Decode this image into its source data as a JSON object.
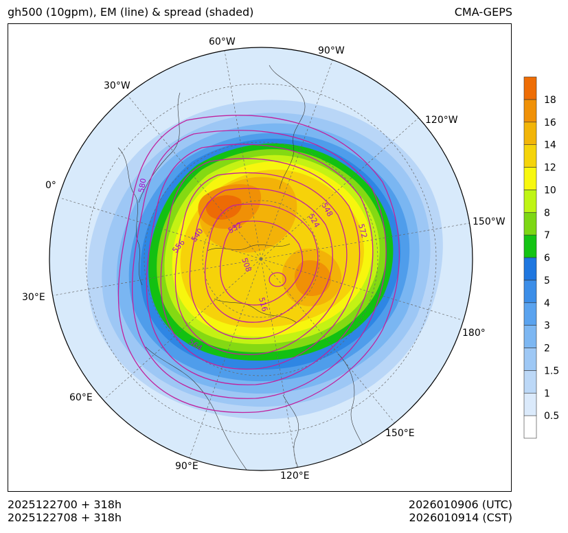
{
  "header": {
    "title": "gh500 (10gpm), EM (line) & spread (shaded)",
    "model": "CMA-GEPS"
  },
  "footer": {
    "init_utc": "2025122700 + 318h",
    "init_cst": "2025122708 + 318h",
    "valid_utc": "2026010906 (UTC)",
    "valid_cst": "2026010914 (CST)"
  },
  "map": {
    "projection": "north-polar-stereographic",
    "longitude_labels": [
      "60°W",
      "90°W",
      "30°W",
      "120°W",
      "0°",
      "150°W",
      "30°E",
      "180°",
      "60°E",
      "150°E",
      "90°E",
      "120°E"
    ],
    "contour_labels": [
      "580",
      "532",
      "548",
      "556",
      "540",
      "524",
      "572",
      "508",
      "516",
      "564"
    ]
  },
  "colorbar": {
    "levels": [
      "0.5",
      "1",
      "1.5",
      "2",
      "3",
      "4",
      "5",
      "6",
      "7",
      "8",
      "10",
      "12",
      "14",
      "16",
      "18"
    ],
    "colors": [
      "#ffffff",
      "#dbeafb",
      "#bcd8f7",
      "#9ec8f5",
      "#7db7f2",
      "#5aa3ef",
      "#3c8ee8",
      "#1f77e0",
      "#14c414",
      "#7dd714",
      "#bff514",
      "#f8f80f",
      "#f5d40a",
      "#f2b508",
      "#f09107",
      "#ee6d05"
    ]
  }
}
